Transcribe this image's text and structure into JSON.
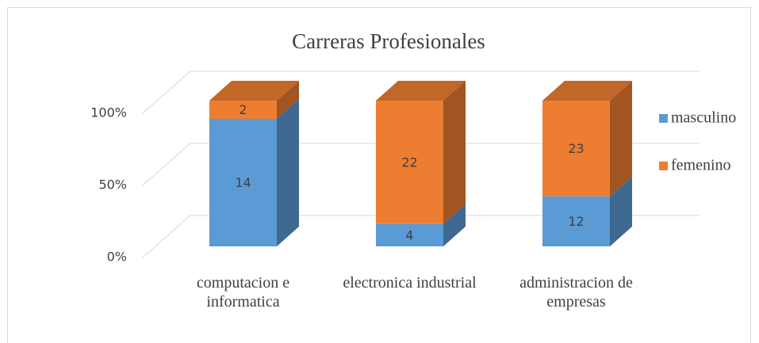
{
  "chart_data": {
    "type": "bar",
    "stacking": "percent",
    "title": "Carreras Profesionales",
    "categories": [
      "computacion e informatica",
      "electronica industrial",
      "administracion de empresas"
    ],
    "series": [
      {
        "name": "masculino",
        "color": "#5b9bd5",
        "values": [
          14,
          4,
          12
        ]
      },
      {
        "name": "femenino",
        "color": "#ed7d31",
        "values": [
          2,
          22,
          23
        ]
      }
    ],
    "ylim": [
      0,
      100
    ],
    "yticks": [
      {
        "value": 0,
        "label": "0%"
      },
      {
        "value": 50,
        "label": "50%"
      },
      {
        "value": 100,
        "label": "100%"
      }
    ],
    "grid": true,
    "legend": "right"
  }
}
